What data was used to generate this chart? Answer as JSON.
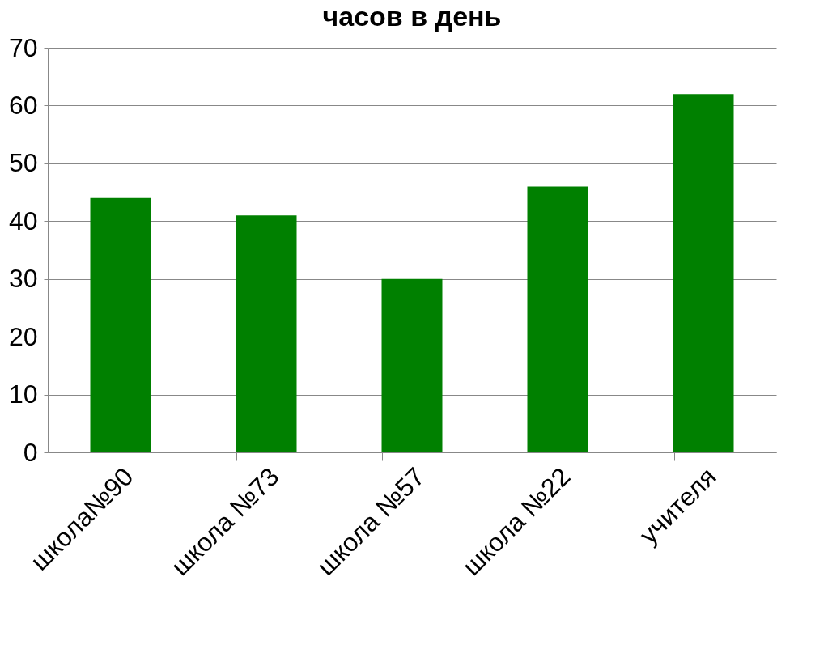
{
  "chart_data": {
    "type": "bar",
    "title": "часов в день",
    "categories": [
      "школа№90",
      "школа №73",
      "школа №57",
      "школа №22",
      "учителя"
    ],
    "values": [
      44,
      41,
      30,
      46,
      62
    ],
    "color": "#008000",
    "ylim": [
      0,
      70
    ],
    "yticks": [
      0,
      10,
      20,
      30,
      40,
      50,
      60,
      70
    ],
    "grid": "y"
  }
}
